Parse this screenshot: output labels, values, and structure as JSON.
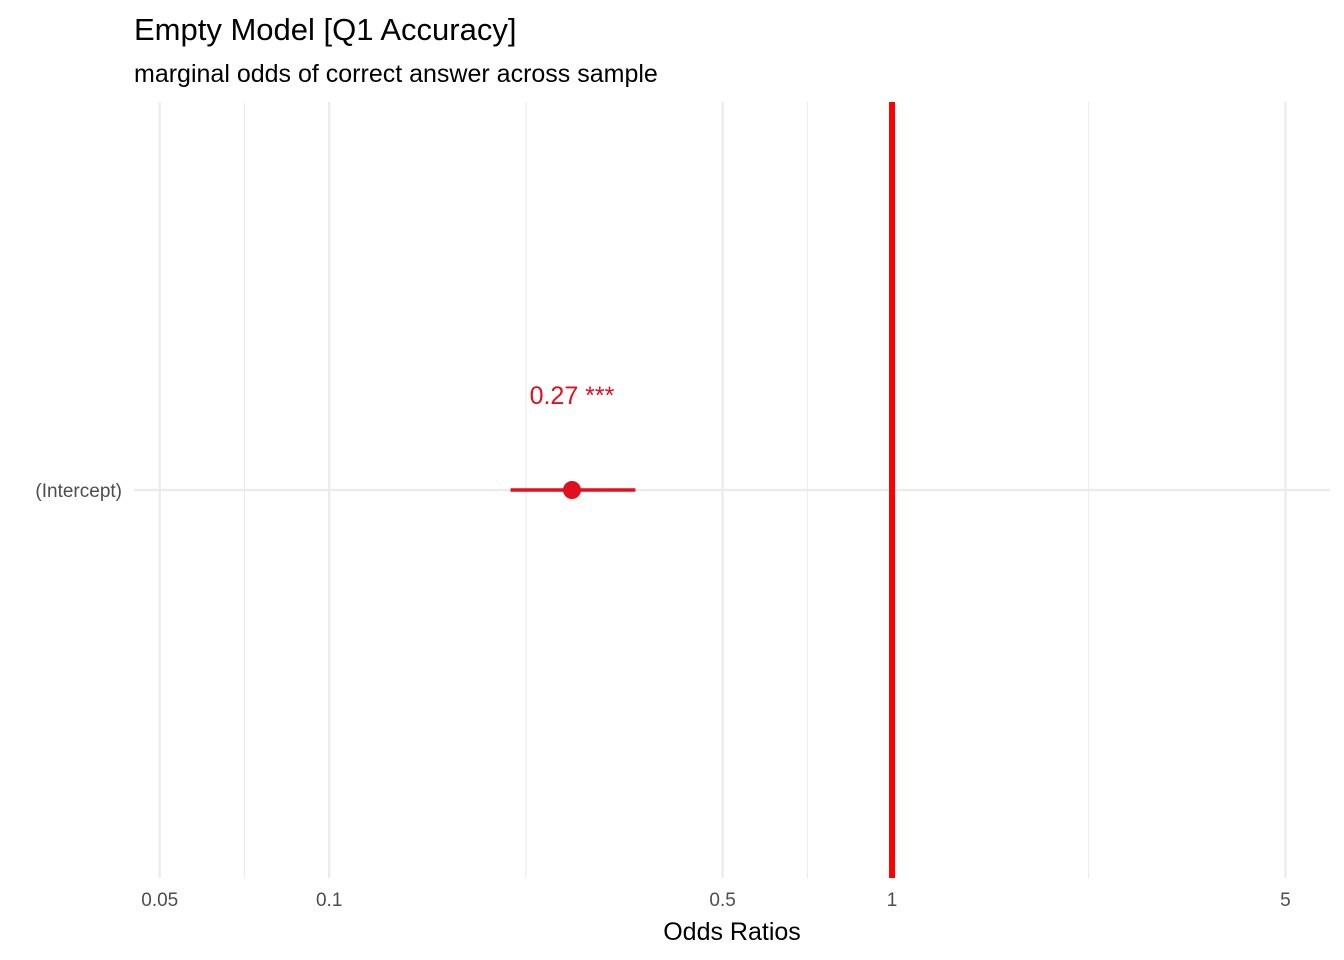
{
  "chart_data": {
    "type": "scatter",
    "title": "Empty Model [Q1 Accuracy]",
    "subtitle": "marginal odds of correct answer across sample",
    "xlabel": "Odds Ratios",
    "ylabel": "",
    "x_scale": "log",
    "xlim": [
      0.045,
      6.0
    ],
    "x_ticks": [
      0.05,
      0.1,
      0.5,
      1,
      5
    ],
    "x_tick_labels": [
      "0.05",
      "0.1",
      "0.5",
      "1",
      "5"
    ],
    "x_minor_ticks": [
      0.0707,
      0.2236,
      0.7071,
      2.2361
    ],
    "categories": [
      "(Intercept)"
    ],
    "grid": true,
    "reference_line": {
      "x": 1,
      "color": "#ff0000"
    },
    "series": [
      {
        "points": [
          {
            "category": "(Intercept)",
            "estimate": 0.27,
            "ci_low": 0.21,
            "ci_high": 0.35,
            "label": "0.27 ***"
          }
        ],
        "color": "#e0101e"
      }
    ]
  }
}
